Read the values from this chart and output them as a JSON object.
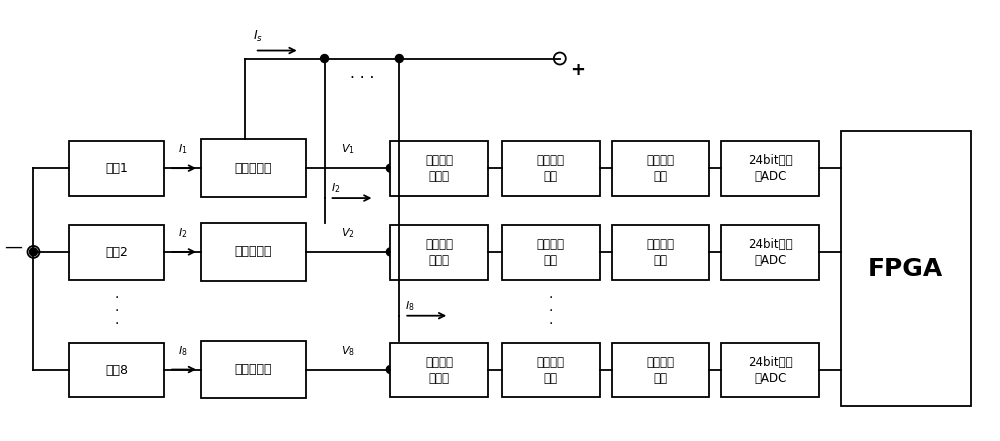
{
  "fig_width": 10.0,
  "fig_height": 4.41,
  "bg_color": "#ffffff",
  "box_color": "#000000",
  "line_color": "#000000",
  "battery_labels": [
    "电池1",
    "电池2",
    "电池8"
  ],
  "hall_label": "霍尔传感器",
  "right_blocks": [
    "单端转差\n分电路",
    "电压跟随\n电路",
    "共模调制\n电路",
    "24bit高精\n度ADC"
  ],
  "fpga_label": "FPGA",
  "i_labels": [
    "I_1",
    "I_2",
    "I_8"
  ],
  "v_labels": [
    "V_1",
    "V_2",
    "V_8"
  ],
  "top_i_label": "I_s"
}
